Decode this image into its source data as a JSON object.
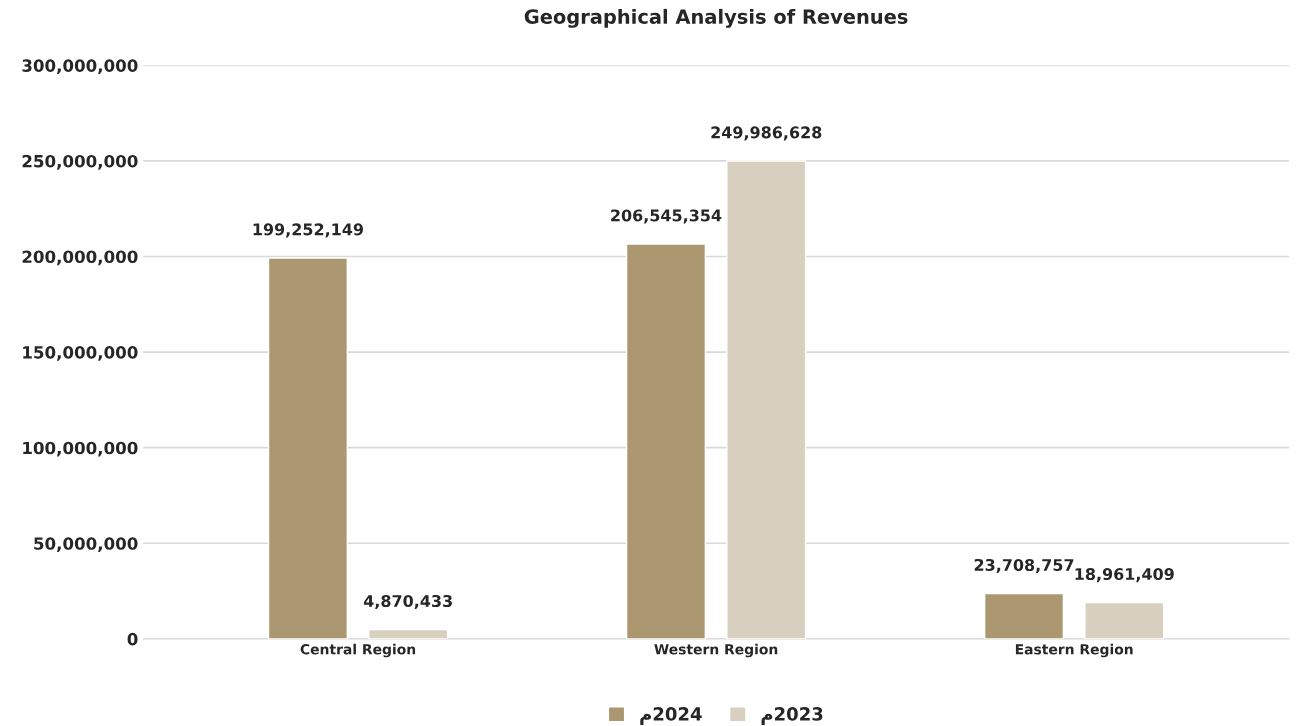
{
  "chart_data": {
    "type": "bar",
    "title": "Geographical Analysis of Revenues",
    "categories": [
      "Central Region",
      "Western Region",
      "Eastern Region"
    ],
    "series": [
      {
        "name": "م2024",
        "color": "#ac9870",
        "values": [
          199252149,
          206545354,
          23708757
        ],
        "value_labels": [
          "199,252,149",
          "206,545,354",
          "23,708,757"
        ]
      },
      {
        "name": "م2023",
        "color": "#d9cfbe",
        "values": [
          4870433,
          249986628,
          18961409
        ],
        "value_labels": [
          "4,870,433",
          "249,986,628",
          "18,961,409"
        ]
      }
    ],
    "ylim": [
      0,
      300000000
    ],
    "yticks": [
      {
        "value": 0,
        "label": "0"
      },
      {
        "value": 50000000,
        "label": "50,000,000"
      },
      {
        "value": 100000000,
        "label": "100,000,000"
      },
      {
        "value": 150000000,
        "label": "150,000,000"
      },
      {
        "value": 200000000,
        "label": "200,000,000"
      },
      {
        "value": 250000000,
        "label": "250,000,000"
      },
      {
        "value": 300000000,
        "label": "300,000,000"
      }
    ],
    "grid": "y",
    "legend": "bottom"
  }
}
